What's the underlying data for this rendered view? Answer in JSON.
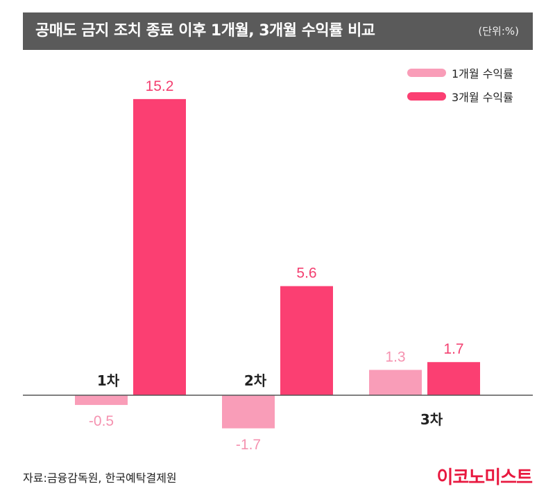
{
  "title": "공매도 금지 조치 종료 이후 1개월, 3개월 수익률 비교",
  "unit": "(단위:%)",
  "legend": [
    {
      "label": "1개월 수익률",
      "color": "#f99db8"
    },
    {
      "label": "3개월 수익률",
      "color": "#fb3f72"
    }
  ],
  "chart_data": {
    "type": "bar",
    "title": "공매도 금지 조치 종료 이후 1개월, 3개월 수익률 비교",
    "ylabel": "%",
    "categories": [
      "1차",
      "2차",
      "3차"
    ],
    "series": [
      {
        "name": "1개월 수익률",
        "values": [
          -0.5,
          -1.7,
          1.3
        ],
        "labels": [
          "-0.5",
          "-1.7",
          "1.3"
        ],
        "color": "#f99db8",
        "label_color": "#f592b0"
      },
      {
        "name": "3개월 수익률",
        "values": [
          15.2,
          5.6,
          1.7
        ],
        "labels": [
          "15.2",
          "5.6",
          "1.7"
        ],
        "color": "#fb3f72",
        "label_color": "#f33f70"
      }
    ]
  },
  "footer": {
    "source": "자료:금융감독원, 한국예탁결제원",
    "brand": "이코노미스트"
  }
}
